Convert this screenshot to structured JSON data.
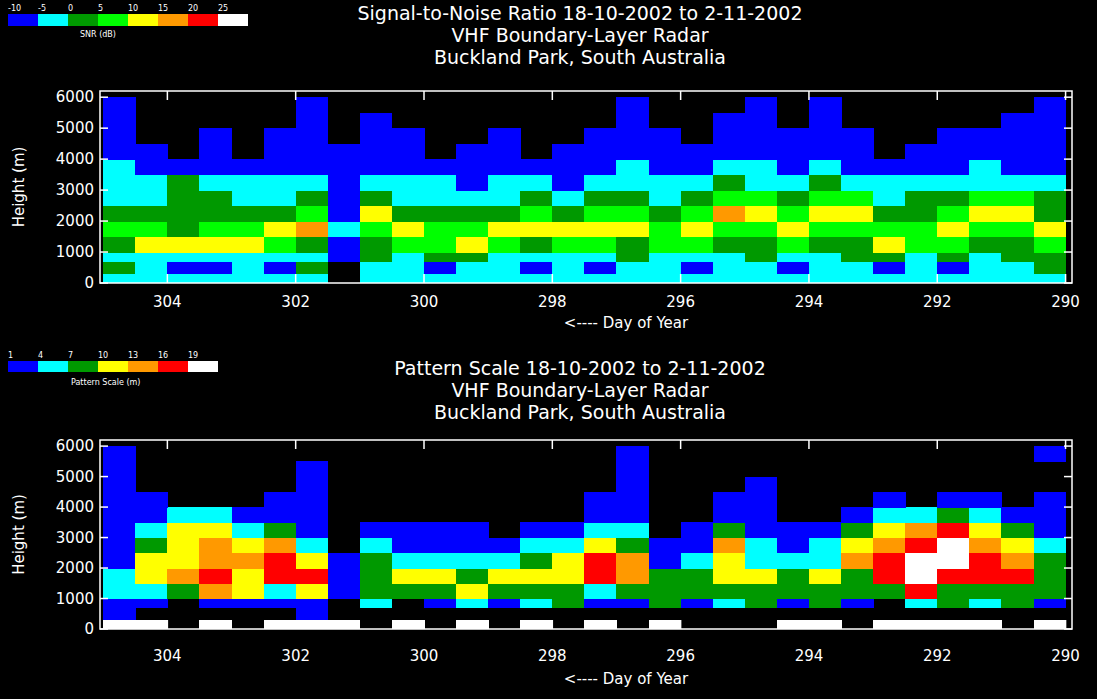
{
  "chart_data": [
    {
      "type": "heatmap",
      "title": "Signal-to-Noise Ratio  18-10-2002 to 2-11-2002",
      "subtitle": [
        "VHF Boundary-Layer Radar",
        "Buckland Park, South Australia"
      ],
      "x_label": "<---- Day of Year",
      "y_label": "Height (m)",
      "xlim": [
        305.05,
        289.9
      ],
      "ylim": [
        0,
        6200
      ],
      "xticks": [
        304,
        302,
        300,
        298,
        296,
        294,
        292,
        290
      ],
      "yticks": [
        0,
        1000,
        2000,
        3000,
        4000,
        5000,
        6000
      ],
      "x_bins": [
        305,
        304.5,
        304,
        303.5,
        303,
        302.5,
        302,
        301.5,
        301,
        300.5,
        300,
        299.5,
        299,
        298.5,
        298,
        297.5,
        297,
        296.5,
        296,
        295.5,
        295,
        294.5,
        294,
        293.5,
        293,
        292.5,
        292,
        291.5,
        291,
        290.5,
        290
      ],
      "y_bins": [
        0,
        300,
        700,
        1000,
        1500,
        2000,
        2500,
        3000,
        3500,
        4000,
        4500,
        5000,
        5500,
        6000
      ],
      "values": [
        [
          -4,
          -4,
          -4,
          -3,
          -4,
          -4,
          -4,
          null,
          -4,
          -4,
          -3,
          -4,
          -4,
          -4,
          -3,
          -4,
          -4,
          -4,
          -4,
          -3,
          -4,
          -4,
          -4,
          -4,
          -3,
          -4,
          -4,
          -4,
          -4,
          -4
        ],
        [
          0,
          -3,
          -6,
          -6,
          -3,
          -6,
          0,
          null,
          -2,
          -3,
          -6,
          -4,
          -2,
          -6,
          -3,
          -6,
          -2,
          -3,
          -6,
          -3,
          -2,
          -6,
          -3,
          -2,
          -6,
          -3,
          -6,
          -2,
          -3,
          0
        ],
        [
          -2,
          -3,
          -2,
          -3,
          -2,
          -3,
          -2,
          -8,
          1,
          -2,
          0,
          1,
          -2,
          -3,
          -2,
          -3,
          0,
          -2,
          -3,
          -2,
          0,
          -2,
          -3,
          0,
          1,
          -2,
          0,
          -2,
          0,
          2
        ],
        [
          3,
          12,
          13,
          12,
          11,
          6,
          3,
          -6,
          4,
          6,
          9,
          11,
          7,
          4,
          8,
          5,
          3,
          9,
          5,
          2,
          4,
          5,
          3,
          4,
          11,
          9,
          5,
          4,
          3,
          8
        ],
        [
          6,
          5,
          4,
          5,
          8,
          13,
          16,
          -4,
          8,
          12,
          8,
          5,
          10,
          12,
          11,
          11,
          12,
          7,
          11,
          6,
          8,
          11,
          6,
          8,
          5,
          8,
          12,
          8,
          7,
          10
        ],
        [
          2,
          0,
          3,
          4,
          2,
          3,
          5,
          -6,
          10,
          3,
          2,
          0,
          3,
          5,
          3,
          5,
          8,
          3,
          6,
          16,
          13,
          6,
          13,
          12,
          2,
          3,
          5,
          11,
          12,
          4
        ],
        [
          -2,
          -2,
          4,
          2,
          -3,
          -1,
          0,
          -7,
          0,
          -1,
          -3,
          -2,
          -1,
          0,
          -2,
          1,
          3,
          -1,
          1,
          6,
          5,
          3,
          6,
          5,
          -1,
          0,
          2,
          5,
          5,
          2
        ],
        [
          -4,
          -3,
          0,
          -2,
          -5,
          -4,
          -4,
          -8,
          -5,
          -4,
          -5,
          -6,
          -4,
          -4,
          -6,
          -3,
          -2,
          -4,
          -3,
          0,
          -1,
          -3,
          0,
          -2,
          -4,
          -4,
          -3,
          -1,
          -3,
          -3
        ],
        [
          -5,
          -6,
          -7,
          -6,
          -8,
          -7,
          -6,
          -9,
          -7,
          -6,
          -8,
          -8,
          -7,
          -8,
          -8,
          -6,
          -5,
          -7,
          -6,
          -4,
          -5,
          -6,
          -5,
          -6,
          -7,
          -6,
          -6,
          -5,
          -6,
          -6
        ],
        [
          -6,
          -8,
          null,
          -8,
          null,
          -8,
          -7,
          -9,
          -8,
          -8,
          null,
          -9,
          -8,
          null,
          -9,
          -8,
          -6,
          -8,
          -8,
          -6,
          -7,
          -8,
          -7,
          -8,
          null,
          -8,
          -8,
          -7,
          -8,
          -8
        ],
        [
          -6,
          null,
          null,
          -9,
          null,
          -9,
          -8,
          null,
          -9,
          -9,
          null,
          null,
          -9,
          null,
          null,
          -9,
          -7,
          -9,
          null,
          -8,
          -8,
          -9,
          -8,
          -9,
          null,
          null,
          -9,
          -8,
          -9,
          -8
        ],
        [
          -7,
          null,
          null,
          null,
          null,
          null,
          -8,
          null,
          -9,
          null,
          null,
          null,
          null,
          null,
          null,
          null,
          -8,
          null,
          null,
          -9,
          -9,
          null,
          -9,
          null,
          null,
          null,
          null,
          null,
          -9,
          -8
        ],
        [
          -7,
          null,
          null,
          null,
          null,
          null,
          -9,
          null,
          null,
          null,
          null,
          null,
          null,
          null,
          null,
          null,
          -9,
          null,
          null,
          null,
          -9,
          null,
          -9,
          null,
          null,
          null,
          null,
          null,
          null,
          -8
        ]
      ],
      "color_bar": {
        "label": "SNR (dB)",
        "range": [
          -10,
          30
        ],
        "ticks": [
          -10,
          -5,
          0,
          5,
          10,
          15,
          20,
          25
        ],
        "colors": [
          "#0000ff",
          "#00ffff",
          "#009900",
          "#00ff00",
          "#ffff00",
          "#ff9900",
          "#ff0000",
          "#ffffff"
        ]
      }
    },
    {
      "type": "heatmap",
      "title": "Pattern Scale  18-10-2002 to 2-11-2002",
      "subtitle": [
        "VHF Boundary-Layer Radar",
        "Buckland Park, South Australia"
      ],
      "x_label": "<---- Day of Year",
      "y_label": "Height (m)",
      "xlim": [
        305.05,
        289.9
      ],
      "ylim": [
        0,
        6200
      ],
      "xticks": [
        304,
        302,
        300,
        298,
        296,
        294,
        292,
        290
      ],
      "yticks": [
        0,
        1000,
        2000,
        3000,
        4000,
        5000,
        6000
      ],
      "x_bins": [
        305,
        304.5,
        304,
        303.5,
        303,
        302.5,
        302,
        301.5,
        301,
        300.5,
        300,
        299.5,
        299,
        298.5,
        298,
        297.5,
        297,
        296.5,
        296,
        295.5,
        295,
        294.5,
        294,
        293.5,
        293,
        292.5,
        292,
        291.5,
        291,
        290.5,
        290
      ],
      "y_bins": [
        0,
        300,
        700,
        1000,
        1500,
        2000,
        2500,
        3000,
        3500,
        4000,
        4500,
        5000,
        5500,
        6000
      ],
      "values": [
        [
          20,
          20,
          null,
          20,
          null,
          20,
          20,
          20,
          null,
          20,
          null,
          20,
          null,
          20,
          null,
          20,
          null,
          20,
          null,
          null,
          null,
          20,
          20,
          null,
          20,
          20,
          20,
          20,
          null,
          20
        ],
        [
          2,
          null,
          null,
          null,
          null,
          null,
          2,
          null,
          null,
          null,
          null,
          null,
          null,
          null,
          null,
          null,
          null,
          null,
          null,
          null,
          null,
          null,
          null,
          null,
          null,
          null,
          null,
          null,
          null,
          null
        ],
        [
          2,
          3,
          null,
          2,
          3,
          2,
          2,
          null,
          5,
          null,
          3,
          5,
          2,
          6,
          8,
          2,
          3,
          8,
          3,
          5,
          8,
          3,
          8,
          2,
          null,
          5,
          8,
          6,
          8,
          2
        ],
        [
          5,
          6,
          8,
          14,
          12,
          6,
          11,
          3,
          8,
          7,
          9,
          11,
          9,
          8,
          8,
          6,
          8,
          8,
          8,
          9,
          8,
          8,
          8,
          8,
          9,
          17,
          8,
          8,
          8,
          8
        ],
        [
          4,
          11,
          14,
          17,
          11,
          16,
          17,
          2,
          9,
          11,
          10,
          8,
          11,
          12,
          12,
          17,
          13,
          8,
          8,
          11,
          10,
          9,
          11,
          9,
          17,
          20,
          18,
          16,
          17,
          9
        ],
        [
          3,
          10,
          12,
          14,
          13,
          17,
          11,
          2,
          8,
          6,
          5,
          4,
          6,
          9,
          10,
          18,
          14,
          3,
          5,
          12,
          6,
          5,
          5,
          14,
          18,
          20,
          19,
          17,
          13,
          7
        ],
        [
          3,
          8,
          11,
          14,
          12,
          15,
          6,
          null,
          5,
          2,
          3,
          2,
          3,
          4,
          4,
          12,
          9,
          2,
          3,
          14,
          5,
          3,
          4,
          12,
          15,
          17,
          20,
          14,
          11,
          4
        ],
        [
          2,
          5,
          12,
          11,
          5,
          9,
          3,
          null,
          2,
          2,
          2,
          2,
          null,
          2,
          2,
          6,
          5,
          null,
          2,
          7,
          3,
          2,
          3,
          9,
          12,
          15,
          17,
          12,
          8,
          3
        ],
        [
          2,
          3,
          6,
          5,
          3,
          3,
          2,
          null,
          null,
          null,
          null,
          null,
          null,
          null,
          null,
          3,
          2,
          null,
          null,
          2,
          2,
          null,
          null,
          3,
          5,
          6,
          9,
          5,
          3,
          2
        ],
        [
          2,
          2,
          null,
          null,
          null,
          2,
          2,
          null,
          null,
          null,
          null,
          null,
          null,
          null,
          null,
          2,
          2,
          null,
          null,
          2,
          2,
          null,
          null,
          null,
          2,
          null,
          2,
          2,
          null,
          2
        ],
        [
          2,
          null,
          null,
          null,
          null,
          null,
          2,
          null,
          null,
          null,
          null,
          null,
          null,
          null,
          null,
          null,
          2,
          null,
          null,
          null,
          2,
          null,
          null,
          null,
          null,
          null,
          null,
          null,
          null,
          null
        ],
        [
          2,
          null,
          null,
          null,
          null,
          null,
          2,
          null,
          null,
          null,
          null,
          null,
          null,
          null,
          null,
          null,
          2,
          null,
          null,
          null,
          null,
          null,
          null,
          null,
          null,
          null,
          null,
          null,
          null,
          null
        ],
        [
          2,
          null,
          null,
          null,
          null,
          null,
          null,
          null,
          null,
          null,
          null,
          null,
          null,
          null,
          null,
          null,
          2,
          null,
          null,
          null,
          null,
          null,
          null,
          null,
          null,
          null,
          null,
          null,
          null,
          2
        ]
      ],
      "color_bar": {
        "label": "Pattern Scale (m)",
        "range": [
          1,
          22
        ],
        "ticks": [
          1,
          4,
          7,
          10,
          13,
          16,
          19
        ],
        "colors": [
          "#0000ff",
          "#00ffff",
          "#009900",
          "#ffff00",
          "#ff9900",
          "#ff0000",
          "#ffffff"
        ]
      }
    }
  ]
}
